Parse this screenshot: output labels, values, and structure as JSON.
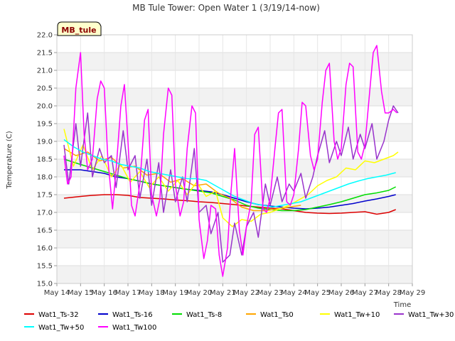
{
  "chart_data": {
    "type": "line",
    "title": "MB Tule Tower: Open Water 1 (3/19/14-now)",
    "xlabel": "Time",
    "ylabel": "Temperature (C)",
    "badge": "MB_tule",
    "ylim": [
      15.0,
      22.0
    ],
    "xlim": [
      14,
      29
    ],
    "x_ticks": [
      14,
      15,
      16,
      17,
      18,
      19,
      20,
      21,
      22,
      23,
      24,
      25,
      26,
      27,
      28,
      29
    ],
    "x_tick_labels": [
      "May 14",
      "May 15",
      "May 16",
      "May 17",
      "May 18",
      "May 19",
      "May 20",
      "May 21",
      "May 22",
      "May 23",
      "May 24",
      "May 25",
      "May 26",
      "May 27",
      "May 28",
      "May 29"
    ],
    "y_ticks": [
      15.0,
      15.5,
      16.0,
      16.5,
      17.0,
      17.5,
      18.0,
      18.5,
      19.0,
      19.5,
      20.0,
      20.5,
      21.0,
      21.5,
      22.0
    ],
    "y_tick_labels": [
      "15.0",
      "15.5",
      "16.0",
      "16.5",
      "17.0",
      "17.5",
      "18.0",
      "18.5",
      "19.0",
      "19.5",
      "20.0",
      "20.5",
      "21.0",
      "21.5",
      "22.0"
    ],
    "grid": true,
    "legend_position": "bottom",
    "series": [
      {
        "name": "Wat1_Ts-32",
        "color": "#dd0000",
        "x": [
          14.3,
          15,
          15.5,
          16,
          16.5,
          17,
          17.5,
          18,
          18.5,
          19,
          19.5,
          20,
          20.5,
          21,
          21.5,
          22,
          22.5,
          23,
          23.5,
          24,
          24.5,
          25,
          25.5,
          26,
          26.5,
          27,
          27.5,
          28,
          28.3
        ],
        "y": [
          17.4,
          17.45,
          17.48,
          17.5,
          17.5,
          17.48,
          17.42,
          17.4,
          17.38,
          17.35,
          17.33,
          17.3,
          17.28,
          17.25,
          17.22,
          17.18,
          17.15,
          17.12,
          17.1,
          17.05,
          17.0,
          16.98,
          16.97,
          16.98,
          17.0,
          17.02,
          16.95,
          17.0,
          17.08
        ]
      },
      {
        "name": "Wat1_Ts-16",
        "color": "#0000cc",
        "x": [
          14.3,
          15,
          15.5,
          16,
          16.5,
          17,
          17.5,
          18,
          18.5,
          19,
          19.5,
          20,
          20.5,
          21,
          21.5,
          22,
          22.5,
          23,
          23.5,
          24,
          24.5,
          25,
          25.5,
          26,
          26.5,
          27,
          27.5,
          28,
          28.3
        ],
        "y": [
          18.2,
          18.2,
          18.15,
          18.1,
          18.0,
          17.95,
          17.88,
          17.8,
          17.75,
          17.7,
          17.65,
          17.62,
          17.58,
          17.5,
          17.4,
          17.3,
          17.22,
          17.18,
          17.15,
          17.12,
          17.1,
          17.12,
          17.15,
          17.2,
          17.25,
          17.32,
          17.38,
          17.45,
          17.5
        ]
      },
      {
        "name": "Wat1_Ts-8",
        "color": "#00dd00",
        "x": [
          14.3,
          15,
          15.5,
          16,
          16.5,
          17,
          17.5,
          18,
          18.5,
          19,
          19.5,
          20,
          20.5,
          21,
          21.5,
          22,
          22.5,
          23,
          23.5,
          24,
          24.5,
          25,
          25.5,
          26,
          26.5,
          27,
          27.5,
          28,
          28.3
        ],
        "y": [
          18.5,
          18.35,
          18.25,
          18.15,
          18.05,
          17.95,
          17.88,
          17.8,
          17.75,
          17.7,
          17.65,
          17.6,
          17.55,
          17.45,
          17.35,
          17.2,
          17.12,
          17.08,
          17.05,
          17.05,
          17.08,
          17.15,
          17.22,
          17.3,
          17.4,
          17.5,
          17.55,
          17.62,
          17.72
        ]
      },
      {
        "name": "Wat1_Ts0",
        "color": "#ffa500",
        "x": [
          14.3,
          14.8,
          15.3,
          15.8,
          16.3,
          16.8,
          17.3,
          17.8,
          18.3,
          18.8,
          19.3,
          19.8,
          20.3,
          20.8,
          21.3,
          21.8,
          22.3,
          22.8,
          23.3,
          23.8,
          24.3
        ],
        "y": [
          18.8,
          18.6,
          18.7,
          18.45,
          18.55,
          18.25,
          18.3,
          18.05,
          18.1,
          17.85,
          17.95,
          17.75,
          17.8,
          17.55,
          17.4,
          17.15,
          17.05,
          17.05,
          17.1,
          17.15,
          17.2
        ]
      },
      {
        "name": "Wat1_Tw+10",
        "color": "#ffff00",
        "x": [
          14.3,
          14.7,
          15.1,
          15.5,
          15.9,
          16.3,
          16.7,
          17.1,
          17.5,
          17.9,
          18.3,
          18.7,
          19.1,
          19.5,
          19.9,
          20.3,
          20.7,
          21.0,
          21.4,
          21.8,
          22.2,
          22.6,
          23.0,
          23.4,
          23.8,
          24.2,
          24.6,
          25.0,
          25.4,
          25.8,
          26.2,
          26.6,
          27.0,
          27.4,
          27.8,
          28.2,
          28.4
        ],
        "y": [
          19.35,
          18.3,
          18.9,
          18.2,
          18.6,
          18.0,
          18.35,
          17.85,
          18.15,
          17.7,
          18.0,
          17.6,
          17.9,
          17.5,
          17.85,
          17.45,
          17.6,
          16.85,
          16.6,
          16.8,
          16.75,
          16.95,
          17.0,
          17.1,
          17.2,
          17.35,
          17.5,
          17.75,
          17.9,
          18.0,
          18.25,
          18.2,
          18.45,
          18.4,
          18.5,
          18.6,
          18.7
        ]
      },
      {
        "name": "Wat1_Tw+30",
        "color": "#9933cc",
        "x": [
          14.3,
          14.5,
          14.8,
          15.0,
          15.3,
          15.5,
          15.8,
          16.0,
          16.3,
          16.5,
          16.8,
          17.0,
          17.3,
          17.5,
          17.8,
          18.0,
          18.3,
          18.5,
          18.8,
          19.0,
          19.3,
          19.5,
          19.8,
          20.0,
          20.3,
          20.5,
          20.8,
          21.0,
          21.3,
          21.5,
          21.8,
          22.0,
          22.3,
          22.5,
          22.8,
          23.0,
          23.3,
          23.5,
          23.8,
          24.0,
          24.3,
          24.5,
          24.8,
          25.0,
          25.3,
          25.5,
          25.8,
          26.0,
          26.3,
          26.5,
          26.8,
          27.0,
          27.3,
          27.5,
          27.8,
          28.0,
          28.2,
          28.4
        ],
        "y": [
          18.9,
          17.8,
          19.5,
          18.3,
          19.8,
          18.0,
          18.8,
          18.4,
          18.6,
          17.7,
          19.3,
          18.2,
          18.6,
          17.4,
          18.5,
          17.2,
          18.4,
          17.0,
          18.2,
          17.3,
          18.0,
          17.3,
          18.8,
          17.0,
          17.2,
          16.4,
          17.0,
          15.6,
          15.8,
          16.7,
          15.8,
          16.6,
          17.0,
          16.3,
          17.8,
          17.2,
          18.0,
          17.3,
          17.8,
          17.6,
          18.1,
          17.4,
          18.0,
          18.6,
          19.3,
          18.4,
          19.0,
          18.6,
          19.4,
          18.5,
          19.2,
          18.8,
          19.5,
          18.5,
          19.0,
          19.6,
          20.0,
          19.8
        ]
      },
      {
        "name": "Wat1_Tw+50",
        "color": "#00ffff",
        "x": [
          14.3,
          14.7,
          15.1,
          15.5,
          15.9,
          16.3,
          16.7,
          17.1,
          17.5,
          17.9,
          18.3,
          18.7,
          19.1,
          19.5,
          19.9,
          20.3,
          20.7,
          21.1,
          21.5,
          21.9,
          22.3,
          22.7,
          23.1,
          23.5,
          23.9,
          24.3,
          24.7,
          25.1,
          25.5,
          25.9,
          26.3,
          26.7,
          27.1,
          27.5,
          27.9,
          28.3
        ],
        "y": [
          19.05,
          18.85,
          18.7,
          18.6,
          18.5,
          18.45,
          18.35,
          18.3,
          18.25,
          18.15,
          18.1,
          18.05,
          18.0,
          17.95,
          17.95,
          17.9,
          17.75,
          17.6,
          17.45,
          17.35,
          17.25,
          17.2,
          17.15,
          17.2,
          17.25,
          17.3,
          17.4,
          17.5,
          17.6,
          17.7,
          17.8,
          17.88,
          17.95,
          18.0,
          18.05,
          18.12
        ]
      },
      {
        "name": "Wat1_Tw100",
        "color": "#ff00ff",
        "x": [
          14.3,
          14.45,
          14.6,
          14.8,
          15.0,
          15.15,
          15.3,
          15.5,
          15.7,
          15.85,
          16.0,
          16.15,
          16.35,
          16.5,
          16.7,
          16.85,
          17.0,
          17.15,
          17.3,
          17.5,
          17.7,
          17.85,
          18.0,
          18.2,
          18.35,
          18.5,
          18.7,
          18.85,
          19.0,
          19.2,
          19.35,
          19.5,
          19.7,
          19.85,
          20.0,
          20.2,
          20.35,
          20.5,
          20.7,
          20.85,
          21.0,
          21.2,
          21.35,
          21.5,
          21.7,
          21.85,
          22.0,
          22.2,
          22.35,
          22.5,
          22.7,
          22.85,
          23.0,
          23.2,
          23.35,
          23.5,
          23.7,
          23.85,
          24.0,
          24.2,
          24.35,
          24.5,
          24.7,
          24.85,
          25.0,
          25.2,
          25.35,
          25.5,
          25.7,
          25.85,
          26.0,
          26.2,
          26.35,
          26.5,
          26.7,
          26.85,
          27.0,
          27.2,
          27.35,
          27.5,
          27.7,
          27.85,
          28.0,
          28.2,
          28.35
        ],
        "y": [
          18.6,
          17.8,
          18.0,
          20.5,
          21.5,
          19.2,
          18.2,
          18.5,
          20.2,
          20.7,
          20.5,
          18.5,
          17.1,
          18.2,
          20.0,
          20.6,
          19.0,
          17.2,
          16.9,
          17.8,
          19.6,
          19.9,
          17.5,
          16.9,
          17.4,
          19.2,
          20.5,
          20.3,
          17.8,
          16.9,
          17.3,
          18.8,
          20.0,
          19.8,
          16.8,
          15.7,
          16.2,
          17.2,
          17.1,
          15.8,
          15.2,
          16.0,
          17.6,
          18.8,
          16.5,
          15.8,
          16.6,
          17.3,
          19.2,
          19.4,
          17.1,
          17.0,
          17.4,
          18.8,
          19.8,
          19.9,
          17.3,
          17.2,
          17.5,
          18.8,
          20.1,
          20.0,
          18.6,
          18.2,
          18.5,
          20.1,
          21.0,
          21.2,
          19.0,
          18.5,
          18.8,
          20.6,
          21.2,
          21.1,
          18.7,
          18.5,
          18.9,
          20.4,
          21.5,
          21.7,
          20.4,
          19.8,
          19.8,
          19.9,
          19.8
        ]
      }
    ]
  }
}
